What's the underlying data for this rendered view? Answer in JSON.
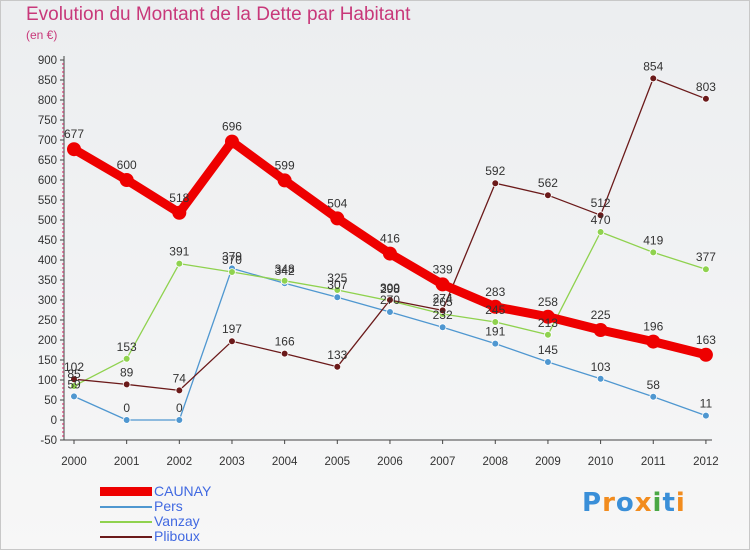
{
  "title": "Evolution du Montant de la Dette par Habitant",
  "unit_label": "(en €)",
  "logo": {
    "text": "Proxiti",
    "letters": [
      {
        "ch": "P",
        "color": "#3a8fd8"
      },
      {
        "ch": "r",
        "color": "#f28c1e"
      },
      {
        "ch": "o",
        "color": "#3a8fd8"
      },
      {
        "ch": "x",
        "color": "#f28c1e"
      },
      {
        "ch": "i",
        "color": "#4aa845"
      },
      {
        "ch": "t",
        "color": "#3a8fd8"
      },
      {
        "ch": "i",
        "color": "#f28c1e"
      }
    ]
  },
  "chart_data": {
    "type": "line",
    "title": "Evolution du Montant de la Dette par Habitant",
    "ylabel": "(en €)",
    "xlabel": "",
    "x": [
      "2000",
      "2001",
      "2002",
      "2003",
      "2004",
      "2005",
      "2006",
      "2007",
      "2008",
      "2009",
      "2010",
      "2011",
      "2012"
    ],
    "ylim": [
      -50,
      900
    ],
    "yticks": [
      -50,
      0,
      50,
      100,
      150,
      200,
      250,
      300,
      350,
      400,
      450,
      500,
      550,
      600,
      650,
      700,
      750,
      800,
      850,
      900
    ],
    "grid": false,
    "legend_position": "bottom-left",
    "series": [
      {
        "name": "CAUNAY",
        "color": "#ee0000",
        "emphasis": true,
        "values": [
          677,
          600,
          518,
          696,
          599,
          504,
          416,
          339,
          283,
          258,
          225,
          196,
          163
        ]
      },
      {
        "name": "Pers",
        "color": "#4f97d0",
        "emphasis": false,
        "values": [
          59,
          0,
          0,
          379,
          342,
          307,
          270,
          232,
          191,
          145,
          103,
          58,
          11
        ]
      },
      {
        "name": "Vanzay",
        "color": "#8fd24e",
        "emphasis": false,
        "values": [
          85,
          153,
          391,
          370,
          348,
          325,
          298,
          265,
          245,
          213,
          470,
          419,
          377
        ]
      },
      {
        "name": "Pliboux",
        "color": "#6b1a1a",
        "emphasis": false,
        "values": [
          102,
          89,
          74,
          197,
          166,
          133,
          300,
          274,
          592,
          562,
          512,
          854,
          803
        ]
      }
    ]
  }
}
